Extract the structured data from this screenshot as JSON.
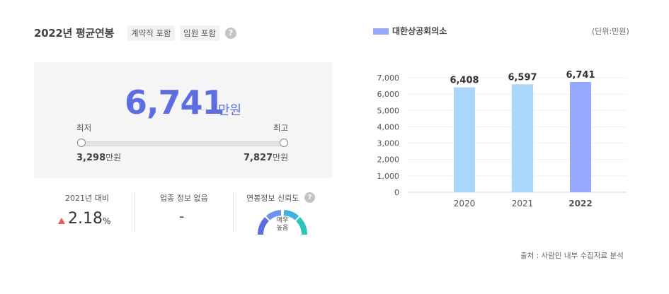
{
  "header": {
    "title": "2022년 평균연봉",
    "tags": [
      "계약직 포함",
      "임원 포함"
    ],
    "help": "?"
  },
  "salary": {
    "value": "6,741",
    "unit": "만원",
    "min_label": "최저",
    "max_label": "최고",
    "min_value": "3,298",
    "max_value": "7,827",
    "value_unit": "만원"
  },
  "stats": {
    "growth_label": "2021년 대비",
    "growth_value": "2.18",
    "growth_unit": "%",
    "industry_label": "업종 정보 없음",
    "industry_value": "-",
    "reliability_label": "연봉정보 신뢰도",
    "reliability_text": "매우\n높음",
    "reliability_level": "매우 높음"
  },
  "chart_meta": {
    "legend": "대한상공회의소",
    "unit_note": "(단위:만원)",
    "source": "출처 : 사람인 내부 수집자료 분석"
  },
  "colors": {
    "accent": "#5c6ee0",
    "bar_past": "#a9d6fb",
    "bar_current": "#97a8ff",
    "up_arrow": "#e45c5c"
  },
  "chart_data": {
    "type": "bar",
    "categories": [
      "2020",
      "2021",
      "2022"
    ],
    "values": [
      6408,
      6597,
      6741
    ],
    "value_labels": [
      "6,408",
      "6,597",
      "6,741"
    ],
    "y_ticks": [
      "0",
      "1,000",
      "2,000",
      "3,000",
      "4,000",
      "5,000",
      "6,000",
      "7,000"
    ],
    "ylim": [
      0,
      7000
    ],
    "series": [
      {
        "name": "대한상공회의소",
        "values": [
          6408,
          6597,
          6741
        ]
      }
    ],
    "grid": true,
    "legend": "top-left"
  }
}
